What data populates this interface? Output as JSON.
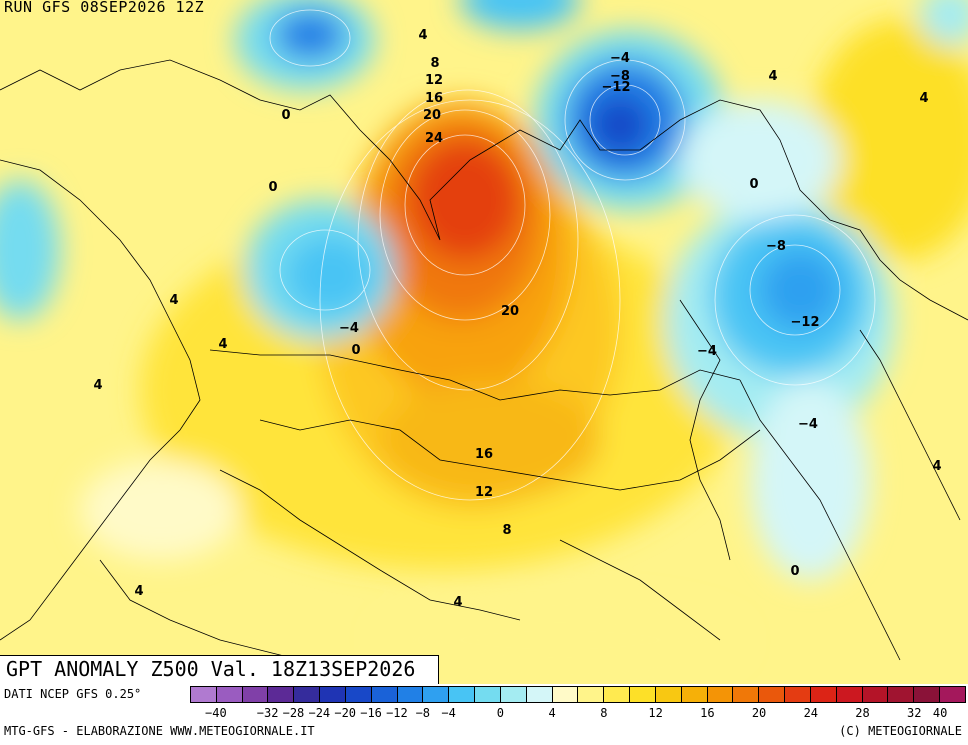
{
  "header": {
    "title": "RUN GFS 08SEP2026 12Z"
  },
  "map_title": "GPT ANOMALY Z500 Val. 18Z13SEP2026",
  "legend": {
    "data_source": "DATI NCEP GFS 0.25°",
    "ticks": [
      "−40",
      "−32",
      "−28",
      "−24",
      "−20",
      "−16",
      "−12",
      "−8",
      "−4",
      "0",
      "4",
      "8",
      "12",
      "16",
      "20",
      "24",
      "28",
      "32",
      "40"
    ],
    "colors": [
      "#b07ad0",
      "#9a5cc0",
      "#8040a8",
      "#5c2a96",
      "#352c9c",
      "#1f34b4",
      "#1848c8",
      "#1a62d8",
      "#2180e6",
      "#2fa0f0",
      "#48c4f4",
      "#74dcf0",
      "#a4ecf2",
      "#d4f6f8",
      "#fffac8",
      "#fff48a",
      "#ffea50",
      "#fde028",
      "#f8c812",
      "#f6b008",
      "#f49406",
      "#f07808",
      "#ea580c",
      "#e43c12",
      "#dc2416",
      "#cc1820",
      "#b41428",
      "#a01430",
      "#8a1238",
      "#a4185c"
    ],
    "credit_left": "MTG-GFS - ELABORAZIONE WWW.METEOGIORNALE.IT",
    "credit_right": "(C) METEOGIORNALE"
  },
  "contour_labels": [
    "4",
    "8",
    "12",
    "16",
    "20",
    "24",
    "20",
    "16",
    "12",
    "8",
    "4",
    "0",
    "0",
    "0",
    "−4",
    "0",
    "4",
    "4",
    "4",
    "4",
    "−4",
    "−8",
    "−12",
    "4",
    "4",
    "0",
    "−8",
    "−12",
    "−4",
    "−4",
    "4",
    "0",
    "4",
    "4"
  ],
  "palette": {
    "neutral_yellow": "#fff48a",
    "warm_orange": "#f49406",
    "hot_red": "#e43c12",
    "cold_blue": "#1848c8",
    "light_cyan": "#a4ecf2"
  }
}
